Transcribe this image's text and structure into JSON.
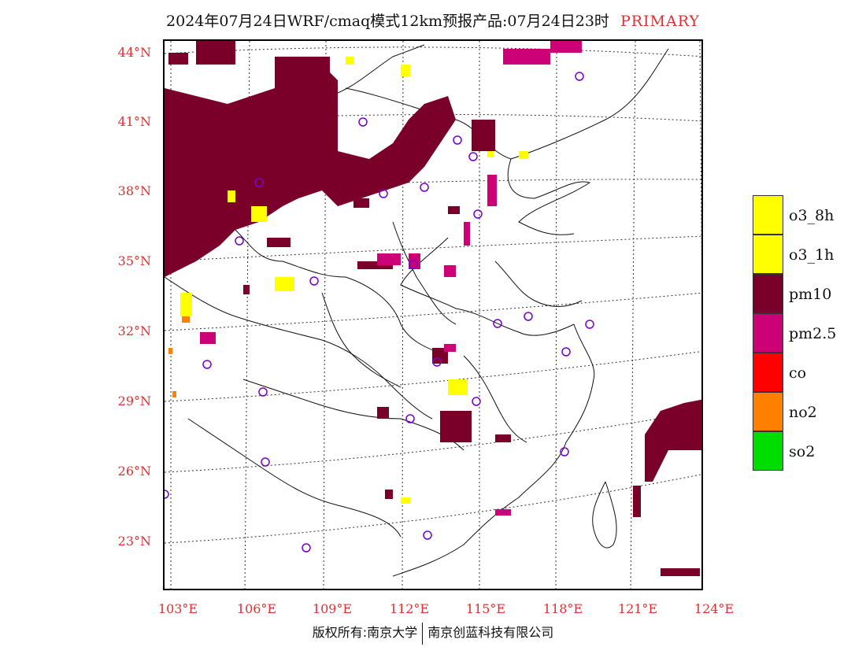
{
  "header": {
    "title": "2024年07月24日WRF/cmaq模式12km预报产品:07月24日23时",
    "tag": "PRIMARY"
  },
  "axes": {
    "lat_labels": [
      "44°N",
      "41°N",
      "38°N",
      "35°N",
      "32°N",
      "29°N",
      "26°N",
      "23°N"
    ],
    "lon_labels": [
      "103°E",
      "106°E",
      "109°E",
      "112°E",
      "115°E",
      "118°E",
      "121°E",
      "124°E"
    ]
  },
  "legend": [
    {
      "label": "o3_8h",
      "color": "#ffff00"
    },
    {
      "label": "o3_1h",
      "color": "#ffff00"
    },
    {
      "label": "pm10",
      "color": "#7b0029"
    },
    {
      "label": "pm2.5",
      "color": "#cc0077"
    },
    {
      "label": "co",
      "color": "#ff0000"
    },
    {
      "label": "no2",
      "color": "#ff7f00"
    },
    {
      "label": "so2",
      "color": "#00dd00"
    }
  ],
  "footer": {
    "left": "版权所有:南京大学",
    "right": "南京创蓝科技有限公司"
  }
}
